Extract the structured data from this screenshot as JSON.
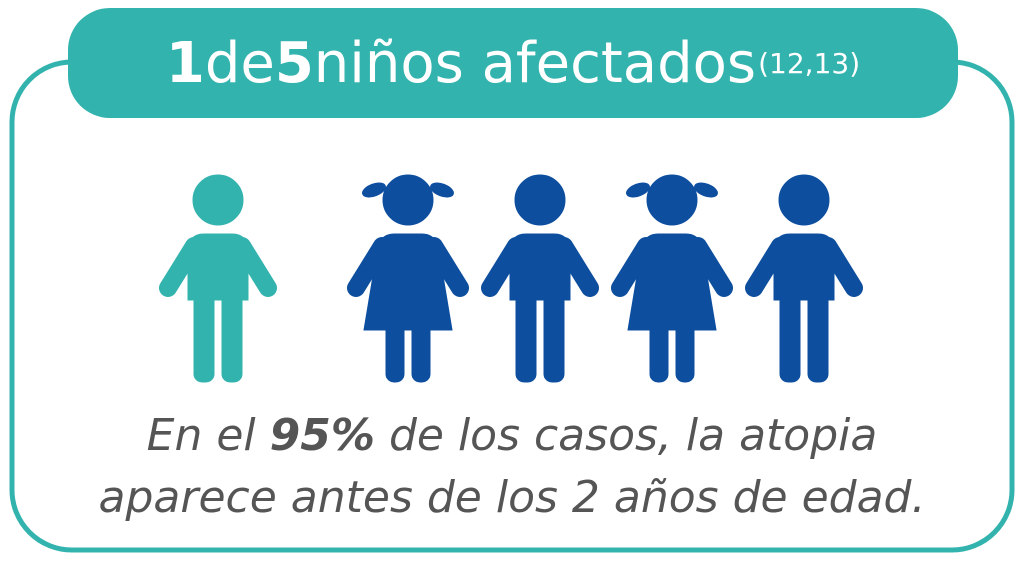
{
  "header": {
    "title": {
      "part1": "1",
      "part2": "de",
      "part3": "5",
      "part4": "niños afectados",
      "reference": "(12,13)"
    }
  },
  "body": {
    "line1": {
      "before": "En el",
      "emphasis": "95%",
      "after": "de los casos, la atopia"
    },
    "line2": "aparece antes de los 2 años de edad."
  }
}
